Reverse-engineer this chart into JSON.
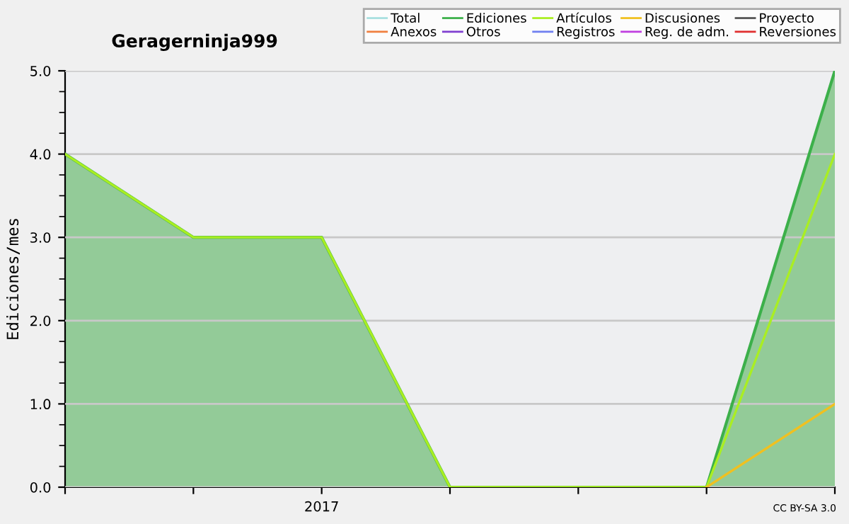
{
  "chart_data": {
    "type": "line",
    "title": "Geragerninja999",
    "ylabel": "Ediciones/mes",
    "categories": [
      null,
      null,
      "2017",
      null,
      null,
      null,
      null
    ],
    "series": [
      {
        "name": "Total",
        "color": "#a8e0e0",
        "values": [
          null,
          null,
          null,
          null,
          null,
          null,
          null
        ]
      },
      {
        "name": "Ediciones",
        "type": "area",
        "color": "#3cb04a",
        "values": [
          4,
          3,
          3,
          0,
          0,
          0,
          5
        ]
      },
      {
        "name": "Artículos",
        "color": "#aaee22",
        "values": [
          4,
          3,
          3,
          0,
          0,
          0,
          4
        ]
      },
      {
        "name": "Discusiones",
        "color": "#f0c020",
        "values": [
          null,
          null,
          null,
          null,
          null,
          0,
          1
        ]
      },
      {
        "name": "Proyecto",
        "color": "#555555",
        "values": [
          null,
          null,
          null,
          null,
          null,
          null,
          null
        ]
      },
      {
        "name": "Anexos",
        "color": "#f08040",
        "values": [
          null,
          null,
          null,
          null,
          null,
          null,
          null
        ]
      },
      {
        "name": "Otros",
        "color": "#8040d0",
        "values": [
          null,
          null,
          null,
          null,
          null,
          null,
          null
        ]
      },
      {
        "name": "Registros",
        "color": "#7080f0",
        "values": [
          null,
          null,
          null,
          null,
          null,
          null,
          null
        ]
      },
      {
        "name": "Reg. de adm.",
        "color": "#c040e0",
        "values": [
          null,
          null,
          null,
          null,
          null,
          null,
          null
        ]
      },
      {
        "name": "Reversiones",
        "color": "#e03030",
        "values": [
          null,
          null,
          null,
          null,
          null,
          null,
          null
        ]
      }
    ],
    "ylim": [
      0,
      5
    ],
    "yticks": [
      {
        "value": 0,
        "label": "0.0"
      },
      {
        "value": 1,
        "label": "1.0"
      },
      {
        "value": 2,
        "label": "2.0"
      },
      {
        "value": 3,
        "label": "3.0"
      },
      {
        "value": 4,
        "label": "4.0"
      },
      {
        "value": 5,
        "label": "5.0"
      }
    ],
    "grid": "y",
    "legend": "top right",
    "annotations": [
      "CC BY-SA 3.0"
    ]
  }
}
